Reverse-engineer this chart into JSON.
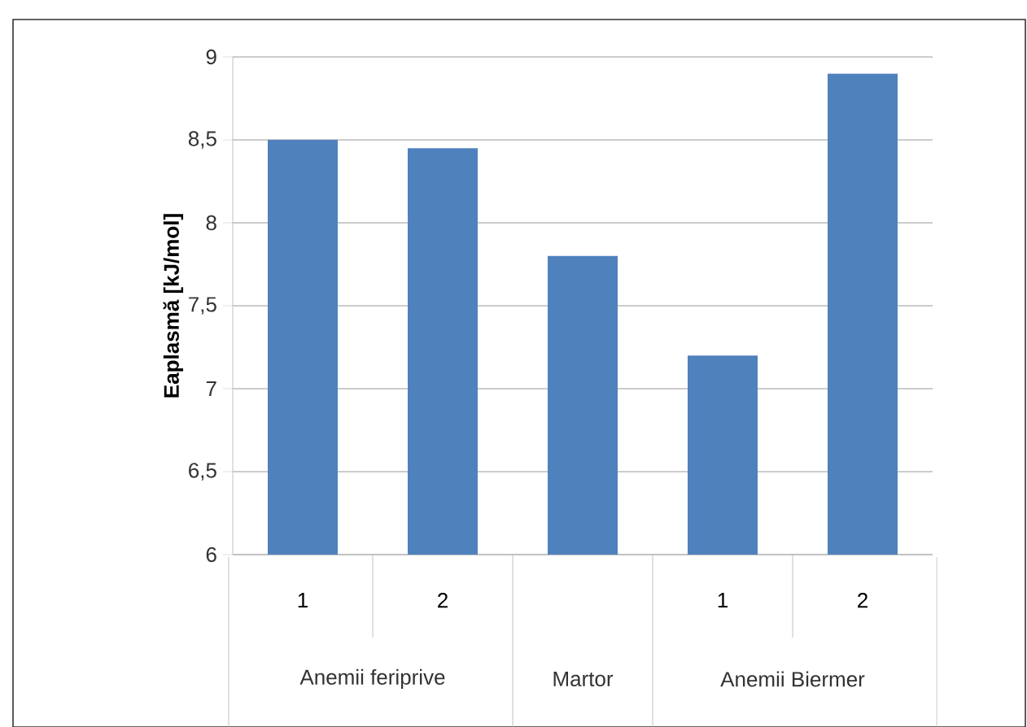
{
  "chart_data": {
    "type": "bar",
    "ylabel": "Eaplasmă [kJ/mol]",
    "categories": [
      "1",
      "2",
      null,
      "1",
      "2"
    ],
    "values": [
      8.5,
      8.45,
      7.8,
      7.2,
      8.9
    ],
    "color": "#4f81bd",
    "ylim": [
      6,
      9
    ],
    "yticks": [
      6,
      {
        "value": 6.5,
        "label": "6,5"
      },
      7,
      {
        "value": 7.5,
        "label": "7,5"
      },
      8,
      {
        "value": 8.5,
        "label": "8,5"
      },
      9
    ],
    "grid": "y",
    "annotations": [
      "Anemii feriprive",
      "Martor",
      "Anemii Biermer"
    ]
  }
}
